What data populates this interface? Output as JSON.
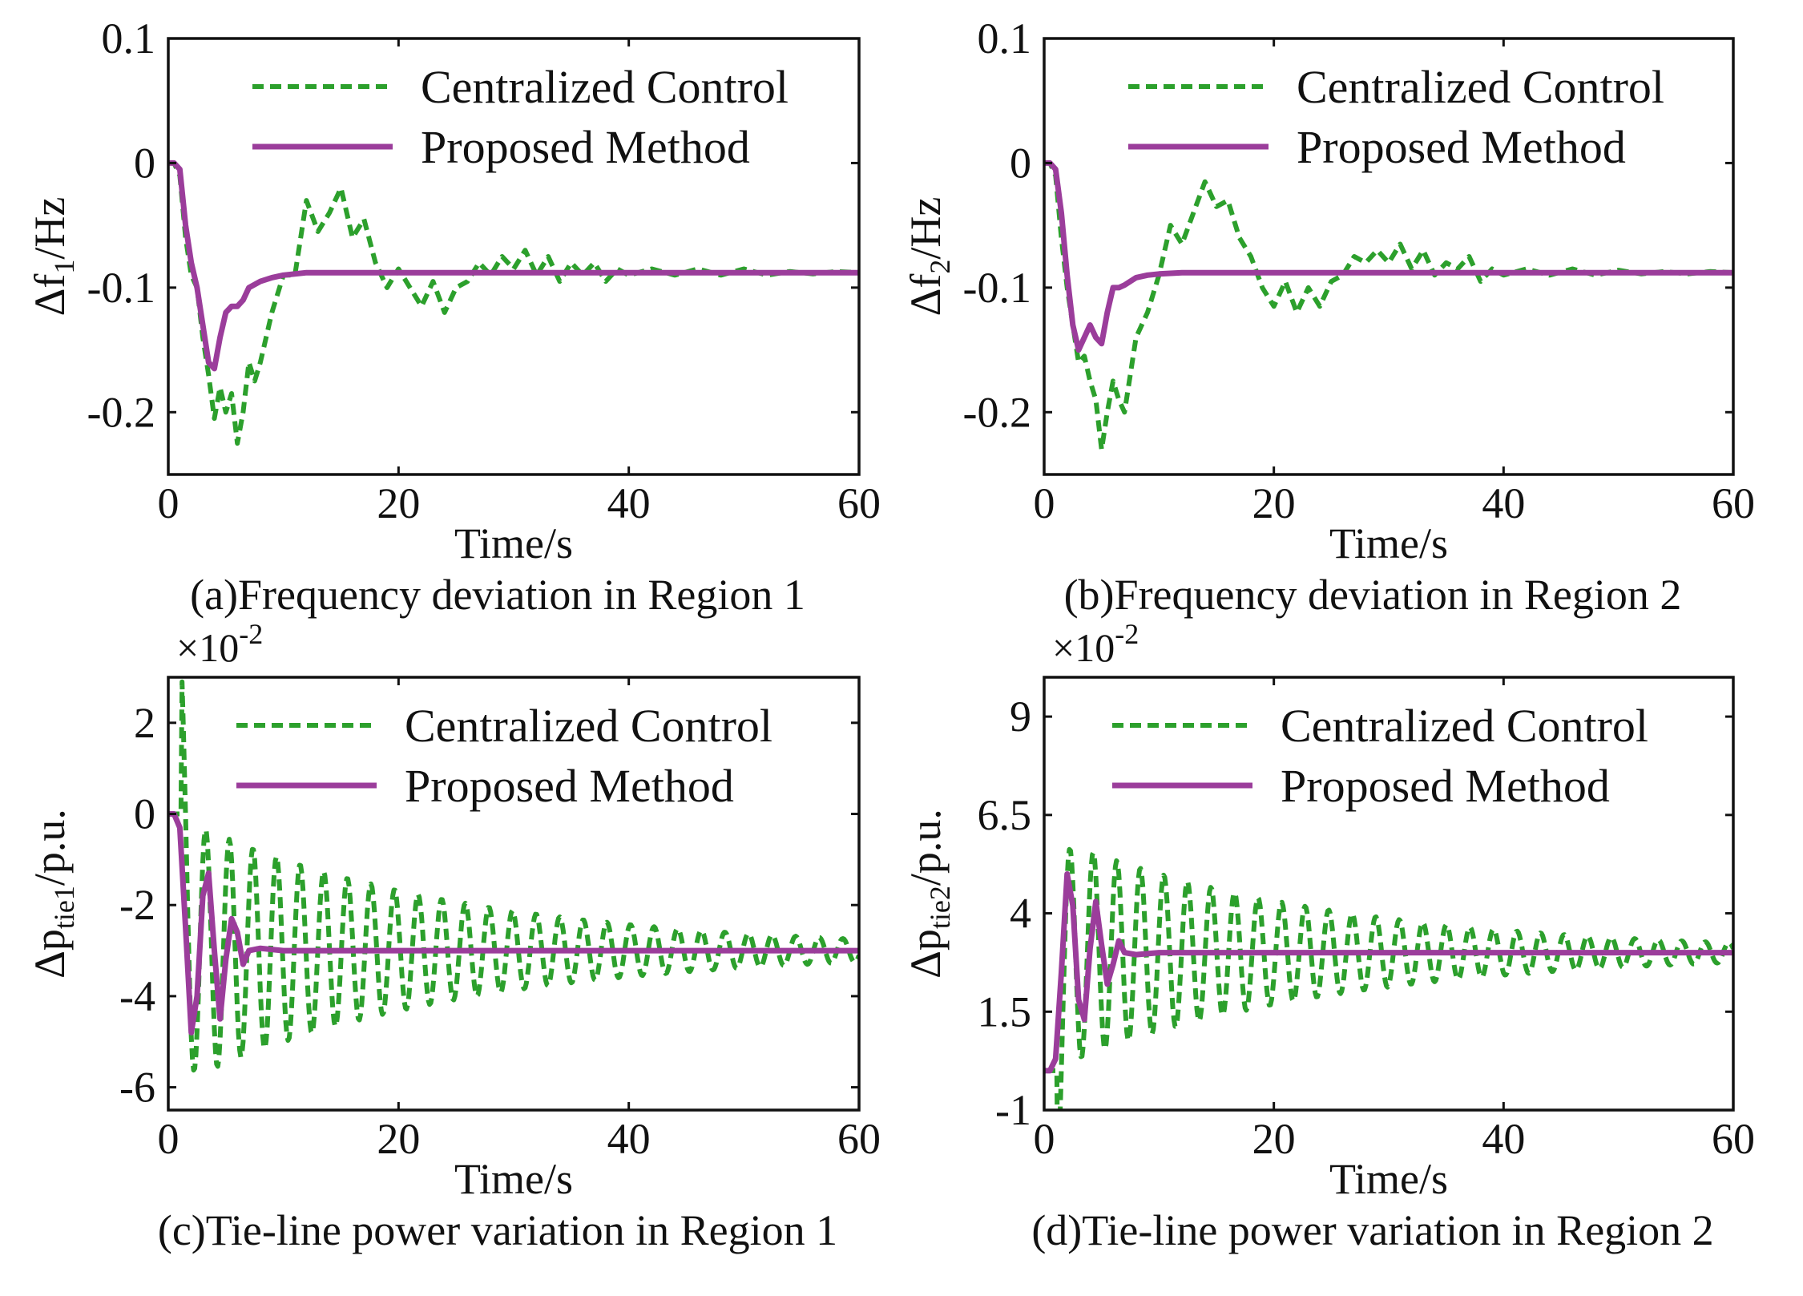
{
  "chart_data": [
    {
      "type": "line",
      "id": "a",
      "caption": "(a)Frequency deviation in Region 1",
      "xlabel": "Time/s",
      "ylabel_main": "Δf",
      "ylabel_sub": "1",
      "ylabel_tail": "/Hz",
      "xlim": [
        0,
        60
      ],
      "ylim": [
        -0.25,
        0.1
      ],
      "xticks": [
        0,
        20,
        40,
        60
      ],
      "xtick_labels": [
        "0",
        "20",
        "40",
        "60"
      ],
      "yticks": [
        0.1,
        0,
        -0.1,
        -0.2
      ],
      "ytick_labels": [
        "0.1",
        "0",
        "-0.1",
        "-0.2"
      ],
      "multiplier": "",
      "legend_position": "top-right",
      "series": [
        {
          "name": "Centralized Control",
          "color": "#2ca02c",
          "style": "dashed",
          "x": [
            0,
            0.5,
            1,
            1.5,
            2,
            2.5,
            3,
            3.5,
            4,
            4.5,
            5,
            5.5,
            6,
            6.5,
            7,
            7.5,
            8,
            9,
            10,
            11,
            12,
            13,
            14,
            15,
            16,
            17,
            18,
            19,
            20,
            21,
            22,
            23,
            24,
            25,
            26,
            27,
            28,
            29,
            30,
            31,
            32,
            33,
            34,
            35,
            36,
            37,
            38,
            39,
            40,
            42,
            44,
            46,
            48,
            50,
            52,
            54,
            56,
            58,
            60
          ],
          "y": [
            0,
            0,
            -0.01,
            -0.06,
            -0.09,
            -0.1,
            -0.14,
            -0.17,
            -0.205,
            -0.18,
            -0.2,
            -0.185,
            -0.225,
            -0.2,
            -0.16,
            -0.175,
            -0.16,
            -0.12,
            -0.09,
            -0.09,
            -0.03,
            -0.055,
            -0.04,
            -0.02,
            -0.06,
            -0.045,
            -0.08,
            -0.1,
            -0.085,
            -0.1,
            -0.115,
            -0.095,
            -0.12,
            -0.1,
            -0.095,
            -0.08,
            -0.09,
            -0.075,
            -0.085,
            -0.07,
            -0.09,
            -0.075,
            -0.095,
            -0.08,
            -0.09,
            -0.08,
            -0.095,
            -0.085,
            -0.09,
            -0.085,
            -0.09,
            -0.085,
            -0.09,
            -0.085,
            -0.09,
            -0.087,
            -0.089,
            -0.087,
            -0.088
          ]
        },
        {
          "name": "Proposed Method",
          "color": "#9b3d9b",
          "style": "solid",
          "x": [
            0,
            0.5,
            1,
            1.5,
            2,
            2.5,
            3,
            3.5,
            4,
            4.5,
            5,
            5.5,
            6,
            6.5,
            7,
            8,
            9,
            10,
            12,
            15,
            20,
            30,
            40,
            50,
            60
          ],
          "y": [
            0,
            0,
            -0.005,
            -0.05,
            -0.08,
            -0.1,
            -0.13,
            -0.16,
            -0.165,
            -0.14,
            -0.12,
            -0.115,
            -0.115,
            -0.11,
            -0.1,
            -0.095,
            -0.092,
            -0.09,
            -0.088,
            -0.088,
            -0.088,
            -0.088,
            -0.088,
            -0.088,
            -0.088
          ]
        }
      ]
    },
    {
      "type": "line",
      "id": "b",
      "caption": "(b)Frequency deviation in Region 2",
      "xlabel": "Time/s",
      "ylabel_main": "Δf",
      "ylabel_sub": "2",
      "ylabel_tail": "/Hz",
      "xlim": [
        0,
        60
      ],
      "ylim": [
        -0.25,
        0.1
      ],
      "xticks": [
        0,
        20,
        40,
        60
      ],
      "xtick_labels": [
        "0",
        "20",
        "40",
        "60"
      ],
      "yticks": [
        0.1,
        0,
        -0.1,
        -0.2
      ],
      "ytick_labels": [
        "0.1",
        "0",
        "-0.1",
        "-0.2"
      ],
      "multiplier": "",
      "legend_position": "top-right",
      "series": [
        {
          "name": "Centralized Control",
          "color": "#2ca02c",
          "style": "dashed",
          "x": [
            0,
            0.5,
            1,
            1.5,
            2,
            2.5,
            3,
            3.5,
            4,
            4.5,
            5,
            5.5,
            6,
            6.5,
            7,
            7.5,
            8,
            9,
            10,
            11,
            12,
            13,
            14,
            15,
            16,
            17,
            18,
            19,
            20,
            21,
            22,
            23,
            24,
            25,
            26,
            27,
            28,
            29,
            30,
            31,
            32,
            33,
            34,
            35,
            36,
            37,
            38,
            39,
            40,
            42,
            44,
            46,
            48,
            50,
            52,
            54,
            56,
            58,
            60
          ],
          "y": [
            0,
            0,
            -0.01,
            -0.06,
            -0.1,
            -0.13,
            -0.16,
            -0.155,
            -0.175,
            -0.19,
            -0.23,
            -0.2,
            -0.175,
            -0.19,
            -0.2,
            -0.17,
            -0.14,
            -0.12,
            -0.09,
            -0.05,
            -0.065,
            -0.04,
            -0.015,
            -0.035,
            -0.03,
            -0.06,
            -0.075,
            -0.1,
            -0.115,
            -0.095,
            -0.12,
            -0.1,
            -0.115,
            -0.095,
            -0.09,
            -0.075,
            -0.08,
            -0.07,
            -0.08,
            -0.065,
            -0.085,
            -0.07,
            -0.09,
            -0.08,
            -0.085,
            -0.075,
            -0.095,
            -0.085,
            -0.09,
            -0.085,
            -0.09,
            -0.085,
            -0.09,
            -0.086,
            -0.089,
            -0.087,
            -0.089,
            -0.087,
            -0.088
          ]
        },
        {
          "name": "Proposed Method",
          "color": "#9b3d9b",
          "style": "solid",
          "x": [
            0,
            0.5,
            1,
            1.5,
            2,
            2.5,
            3,
            3.5,
            4,
            4.5,
            5,
            5.5,
            6,
            6.5,
            7,
            8,
            9,
            10,
            12,
            15,
            20,
            30,
            40,
            50,
            60
          ],
          "y": [
            0,
            0,
            -0.005,
            -0.04,
            -0.09,
            -0.13,
            -0.15,
            -0.14,
            -0.13,
            -0.14,
            -0.145,
            -0.12,
            -0.1,
            -0.1,
            -0.098,
            -0.092,
            -0.09,
            -0.089,
            -0.088,
            -0.088,
            -0.088,
            -0.088,
            -0.088,
            -0.088,
            -0.088
          ]
        }
      ]
    },
    {
      "type": "line",
      "id": "c",
      "caption": "(c)Tie-line power variation in Region 1",
      "xlabel": "Time/s",
      "ylabel_main": "Δp",
      "ylabel_sub": "tie1",
      "ylabel_tail": "/p.u.",
      "xlim": [
        0,
        60
      ],
      "ylim": [
        -6.5,
        3
      ],
      "xticks": [
        0,
        20,
        40,
        60
      ],
      "xtick_labels": [
        "0",
        "20",
        "40",
        "60"
      ],
      "yticks": [
        2,
        0,
        -2,
        -4,
        -6
      ],
      "ytick_labels": [
        "2",
        "0",
        "-2",
        "-4",
        "-6"
      ],
      "multiplier": "×10",
      "multiplier_exp": "-2",
      "legend_position": "top-right",
      "osc": {
        "final": -3.0,
        "amp": 2.9,
        "period": 2.05,
        "tau": 24,
        "start": 1.2
      },
      "series": [
        {
          "name": "Centralized Control",
          "color": "#2ca02c",
          "style": "dashed",
          "x": [],
          "y": []
        },
        {
          "name": "Proposed Method",
          "color": "#9b3d9b",
          "style": "solid",
          "x": [
            0,
            0.5,
            1,
            1.5,
            2,
            2.5,
            3,
            3.5,
            4,
            4.5,
            5,
            5.5,
            6,
            6.5,
            7,
            8,
            10,
            15,
            20,
            30,
            40,
            50,
            60
          ],
          "y": [
            0,
            0,
            -0.3,
            -2.5,
            -4.8,
            -4.0,
            -1.8,
            -1.3,
            -3.0,
            -4.5,
            -3.2,
            -2.3,
            -2.6,
            -3.3,
            -3.0,
            -2.95,
            -3.0,
            -3.0,
            -3.0,
            -3.0,
            -3.0,
            -3.0,
            -3.0
          ]
        }
      ]
    },
    {
      "type": "line",
      "id": "d",
      "caption": "(d)Tie-line power variation in Region 2",
      "xlabel": "Time/s",
      "ylabel_main": "Δp",
      "ylabel_sub": "tie2",
      "ylabel_tail": "/p.u.",
      "xlim": [
        0,
        60
      ],
      "ylim": [
        -1,
        10
      ],
      "xticks": [
        0,
        20,
        40,
        60
      ],
      "xtick_labels": [
        "0",
        "20",
        "40",
        "60"
      ],
      "yticks": [
        9,
        6.5,
        4,
        1.5,
        -1
      ],
      "ytick_labels": [
        "9",
        "6.5",
        "4",
        "1.5",
        "-1"
      ],
      "multiplier": "×10",
      "multiplier_exp": "-2",
      "legend_position": "top-right",
      "osc": {
        "final": 3.0,
        "amp": 2.9,
        "period": 2.05,
        "tau": 24,
        "start": 1.2
      },
      "series": [
        {
          "name": "Centralized Control",
          "color": "#2ca02c",
          "style": "dashed",
          "x": [],
          "y": []
        },
        {
          "name": "Proposed Method",
          "color": "#9b3d9b",
          "style": "solid",
          "x": [
            0,
            0.5,
            1,
            1.5,
            2,
            2.5,
            3,
            3.5,
            4,
            4.5,
            5,
            5.5,
            6,
            6.5,
            7,
            8,
            10,
            15,
            20,
            30,
            40,
            50,
            60
          ],
          "y": [
            0,
            0,
            0.3,
            2.5,
            5.0,
            4.2,
            1.8,
            1.3,
            3.1,
            4.3,
            3.2,
            2.2,
            2.7,
            3.3,
            3.0,
            2.95,
            3.0,
            3.0,
            3.0,
            3.0,
            3.0,
            3.0,
            3.0
          ]
        }
      ]
    }
  ]
}
